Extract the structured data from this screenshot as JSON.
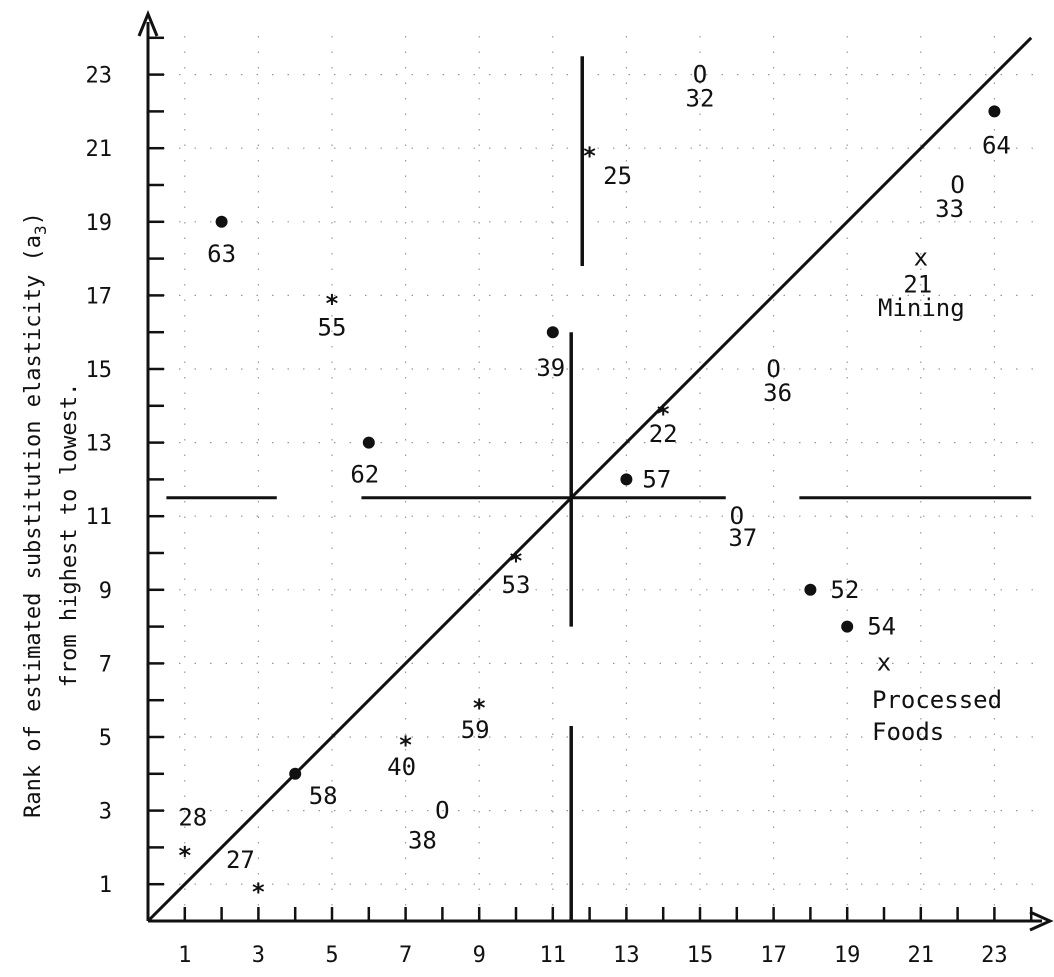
{
  "chart_data": {
    "type": "scatter",
    "title": "",
    "xlabel": "",
    "ylabel": {
      "line1": "Rank of estimated substitution elasticity (a",
      "subscript": "3",
      "line1_end": ")",
      "line2": "from highest to lowest."
    },
    "xlim": [
      0,
      24
    ],
    "ylim": [
      0,
      24
    ],
    "x_ticks": [
      "1",
      "3",
      "5",
      "7",
      "9",
      "11",
      "13",
      "15",
      "17",
      "19",
      "21",
      "23"
    ],
    "y_ticks": [
      "1",
      "3",
      "5",
      "7",
      "9",
      "11",
      "13",
      "15",
      "17",
      "19",
      "21",
      "23"
    ],
    "grid": "dotted",
    "diagonal": [
      [
        0,
        0
      ],
      [
        24,
        24
      ]
    ],
    "reference_value": 11.5,
    "points": [
      {
        "label": "63",
        "marker": "dot",
        "x": 2,
        "y": 19
      },
      {
        "label": "55",
        "marker": "star",
        "x": 5,
        "y": 17
      },
      {
        "label": "62",
        "marker": "dot",
        "x": 6,
        "y": 13
      },
      {
        "label": "39",
        "marker": "dot",
        "x": 11,
        "y": 16
      },
      {
        "label": "25",
        "marker": "star",
        "x": 12,
        "y": 21
      },
      {
        "label": "32",
        "marker": "circle",
        "x": 15,
        "y": 23
      },
      {
        "label": "64",
        "marker": "dot",
        "x": 23,
        "y": 22
      },
      {
        "label": "33",
        "marker": "circle",
        "x": 22,
        "y": 20
      },
      {
        "label": "21",
        "marker": "x",
        "x": 21,
        "y": 18
      },
      {
        "label": "36",
        "marker": "circle",
        "x": 17,
        "y": 15
      },
      {
        "label": "22",
        "marker": "star",
        "x": 14,
        "y": 14
      },
      {
        "label": "57",
        "marker": "dot",
        "x": 13,
        "y": 12
      },
      {
        "label": "37",
        "marker": "circle",
        "x": 16,
        "y": 11
      },
      {
        "label": "53",
        "marker": "star",
        "x": 10,
        "y": 10
      },
      {
        "label": "52",
        "marker": "dot",
        "x": 18,
        "y": 9
      },
      {
        "label": "54",
        "marker": "dot",
        "x": 19,
        "y": 8
      },
      {
        "label": "",
        "marker": "x",
        "x": 20,
        "y": 7
      },
      {
        "label": "59",
        "marker": "star",
        "x": 9,
        "y": 6
      },
      {
        "label": "40",
        "marker": "star",
        "x": 7,
        "y": 5
      },
      {
        "label": "58",
        "marker": "dot",
        "x": 4,
        "y": 4
      },
      {
        "label": "38",
        "marker": "circle",
        "x": 8,
        "y": 3
      },
      {
        "label": "28",
        "marker": "star",
        "x": 1,
        "y": 2
      },
      {
        "label": "27",
        "marker": "star",
        "x": 3,
        "y": 1
      }
    ],
    "annotations": [
      "Mining",
      "Processed",
      "Foods"
    ]
  }
}
